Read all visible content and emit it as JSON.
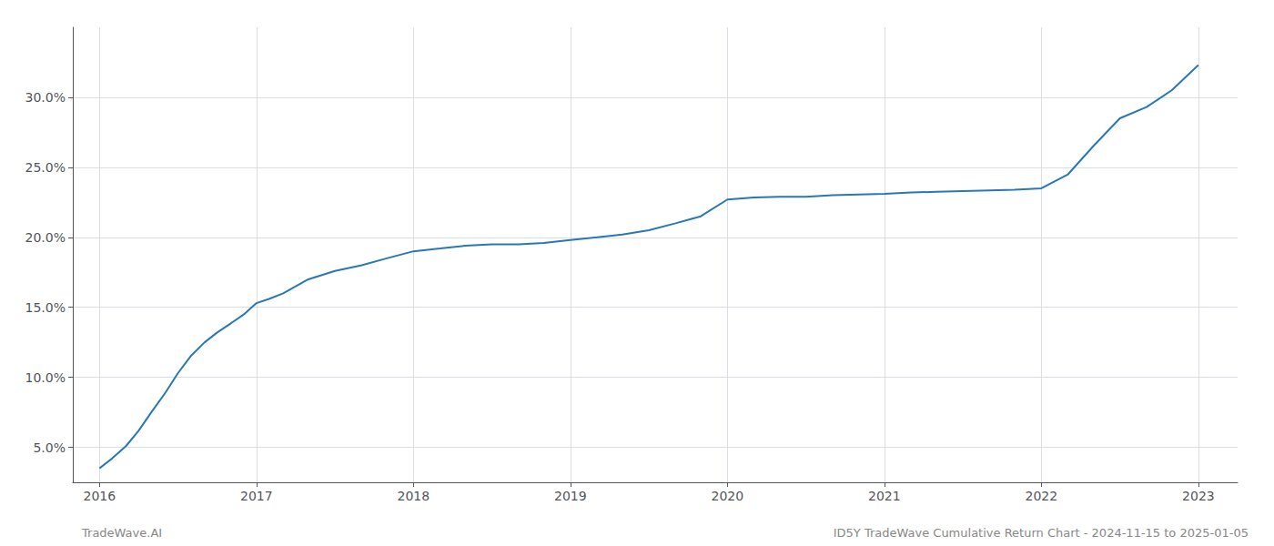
{
  "chart_data": {
    "type": "line",
    "annotations": [
      "TradeWave.AI",
      "ID5Y TradeWave Cumulative Return Chart - 2024-11-15 to 2025-01-05"
    ],
    "x": [
      2016.0,
      2016.08,
      2016.17,
      2016.25,
      2016.33,
      2016.42,
      2016.5,
      2016.58,
      2016.67,
      2016.75,
      2016.83,
      2016.92,
      2017.0,
      2017.08,
      2017.17,
      2017.25,
      2017.33,
      2017.5,
      2017.67,
      2017.83,
      2018.0,
      2018.17,
      2018.33,
      2018.5,
      2018.67,
      2018.83,
      2019.0,
      2019.17,
      2019.33,
      2019.5,
      2019.67,
      2019.83,
      2020.0,
      2020.17,
      2020.33,
      2020.5,
      2020.67,
      2021.0,
      2021.17,
      2021.33,
      2021.5,
      2021.67,
      2021.83,
      2022.0,
      2022.17,
      2022.33,
      2022.5,
      2022.67,
      2022.83,
      2023.0
    ],
    "values": [
      3.5,
      4.2,
      5.1,
      6.2,
      7.5,
      8.9,
      10.3,
      11.5,
      12.5,
      13.2,
      13.8,
      14.5,
      15.3,
      15.6,
      16.0,
      16.5,
      17.0,
      17.6,
      18.0,
      18.5,
      19.0,
      19.2,
      19.4,
      19.5,
      19.5,
      19.6,
      19.8,
      20.0,
      20.2,
      20.5,
      21.0,
      21.5,
      22.7,
      22.85,
      22.9,
      22.9,
      23.0,
      23.1,
      23.2,
      23.25,
      23.3,
      23.35,
      23.4,
      23.5,
      24.5,
      26.5,
      28.5,
      29.3,
      30.5,
      32.3
    ],
    "color": "#2878b5",
    "xlim": [
      2015.83,
      2023.25
    ],
    "ylim": [
      2.5,
      35.0
    ],
    "xticks": [
      2016,
      2017,
      2018,
      2019,
      2020,
      2021,
      2022,
      2023
    ],
    "yticks": [
      {
        "value": 5.0,
        "label": "5.0%"
      },
      {
        "value": 10.0,
        "label": "10.0%"
      },
      {
        "value": 15.0,
        "label": "15.0%"
      },
      {
        "value": 20.0,
        "label": "20.0%"
      },
      {
        "value": 25.0,
        "label": "25.0%"
      },
      {
        "value": 30.0,
        "label": "30.0%"
      }
    ],
    "grid": true
  }
}
